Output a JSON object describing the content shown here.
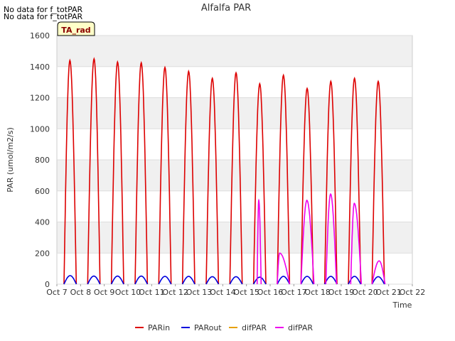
{
  "notes": [
    "No data for f_totPAR",
    "No data for f_totPAR"
  ],
  "badge": "TA_rad",
  "chart_data": {
    "type": "line",
    "title": "Alfalfa PAR",
    "xlabel": "Time",
    "ylabel": "PAR (umol/m2/s)",
    "ylim": [
      0,
      1600
    ],
    "yticks": [
      0,
      200,
      400,
      600,
      800,
      1000,
      1200,
      1400,
      1600
    ],
    "xlim": [
      7,
      22
    ],
    "xticks": [
      {
        "x": 7,
        "label": "Oct 7"
      },
      {
        "x": 8,
        "label": "Oct 8"
      },
      {
        "x": 9,
        "label": "Oct 9"
      },
      {
        "x": 10,
        "label": "Oct 10"
      },
      {
        "x": 11,
        "label": "Oct 11"
      },
      {
        "x": 12,
        "label": "Oct 12"
      },
      {
        "x": 13,
        "label": "Oct 13"
      },
      {
        "x": 14,
        "label": "Oct 14"
      },
      {
        "x": 15,
        "label": "Oct 15"
      },
      {
        "x": 16,
        "label": "Oct 16"
      },
      {
        "x": 17,
        "label": "Oct 17"
      },
      {
        "x": 18,
        "label": "Oct 18"
      },
      {
        "x": 19,
        "label": "Oct 19"
      },
      {
        "x": 20,
        "label": "Oct 20"
      },
      {
        "x": 21,
        "label": "Oct 21"
      },
      {
        "x": 22,
        "label": "Oct 22"
      }
    ],
    "grid": true,
    "legend_position": "bottom",
    "series": [
      {
        "name": "PARin",
        "color": "#dd0000",
        "days": [
          {
            "start": 7.3,
            "end": 7.82,
            "peak_x": 7.55,
            "peak": 1440
          },
          {
            "start": 8.3,
            "end": 8.82,
            "peak_x": 8.57,
            "peak": 1450
          },
          {
            "start": 9.3,
            "end": 9.82,
            "peak_x": 9.56,
            "peak": 1430
          },
          {
            "start": 10.3,
            "end": 10.82,
            "peak_x": 10.56,
            "peak": 1425
          },
          {
            "start": 11.3,
            "end": 11.82,
            "peak_x": 11.56,
            "peak": 1395
          },
          {
            "start": 12.3,
            "end": 12.82,
            "peak_x": 12.56,
            "peak": 1370
          },
          {
            "start": 13.3,
            "end": 13.82,
            "peak_x": 13.56,
            "peak": 1325
          },
          {
            "start": 14.3,
            "end": 14.82,
            "peak_x": 14.56,
            "peak": 1360
          },
          {
            "start": 15.3,
            "end": 15.82,
            "peak_x": 15.56,
            "peak": 1290
          },
          {
            "start": 16.3,
            "end": 16.82,
            "peak_x": 16.56,
            "peak": 1345
          },
          {
            "start": 17.3,
            "end": 17.82,
            "peak_x": 17.56,
            "peak": 1260
          },
          {
            "start": 18.3,
            "end": 18.82,
            "peak_x": 18.56,
            "peak": 1305
          },
          {
            "start": 19.3,
            "end": 19.82,
            "peak_x": 19.56,
            "peak": 1325
          },
          {
            "start": 20.3,
            "end": 20.82,
            "peak_x": 20.56,
            "peak": 1305
          }
        ]
      },
      {
        "name": "PARout",
        "color": "#0000dd",
        "days": [
          {
            "start": 7.3,
            "end": 7.82,
            "peak_x": 7.56,
            "peak": 55
          },
          {
            "start": 8.3,
            "end": 8.82,
            "peak_x": 8.56,
            "peak": 52
          },
          {
            "start": 9.3,
            "end": 9.82,
            "peak_x": 9.56,
            "peak": 52
          },
          {
            "start": 10.3,
            "end": 10.82,
            "peak_x": 10.56,
            "peak": 52
          },
          {
            "start": 11.3,
            "end": 11.82,
            "peak_x": 11.56,
            "peak": 50
          },
          {
            "start": 12.3,
            "end": 12.82,
            "peak_x": 12.56,
            "peak": 50
          },
          {
            "start": 13.3,
            "end": 13.82,
            "peak_x": 13.56,
            "peak": 48
          },
          {
            "start": 14.3,
            "end": 14.82,
            "peak_x": 14.56,
            "peak": 48
          },
          {
            "start": 15.3,
            "end": 15.82,
            "peak_x": 15.56,
            "peak": 45
          },
          {
            "start": 16.3,
            "end": 16.82,
            "peak_x": 16.56,
            "peak": 50
          },
          {
            "start": 17.3,
            "end": 17.82,
            "peak_x": 17.56,
            "peak": 50
          },
          {
            "start": 18.3,
            "end": 18.82,
            "peak_x": 18.56,
            "peak": 50
          },
          {
            "start": 19.3,
            "end": 19.82,
            "peak_x": 19.56,
            "peak": 50
          },
          {
            "start": 20.3,
            "end": 20.82,
            "peak_x": 20.56,
            "peak": 48
          }
        ]
      },
      {
        "name": "difPAR",
        "color": "#e8a000",
        "days": []
      },
      {
        "name": "difPAR",
        "color": "#ee00ee",
        "days": [
          {
            "start": 15.45,
            "end": 15.62,
            "peak_x": 15.52,
            "peak": 540
          },
          {
            "start": 16.3,
            "end": 16.82,
            "peak_x": 16.4,
            "peak": 200
          },
          {
            "start": 17.3,
            "end": 17.85,
            "peak_x": 17.55,
            "peak": 540
          },
          {
            "start": 18.35,
            "end": 18.8,
            "peak_x": 18.55,
            "peak": 580
          },
          {
            "start": 19.4,
            "end": 19.85,
            "peak_x": 19.55,
            "peak": 520
          },
          {
            "start": 20.3,
            "end": 20.85,
            "peak_x": 20.6,
            "peak": 150
          }
        ]
      }
    ]
  }
}
